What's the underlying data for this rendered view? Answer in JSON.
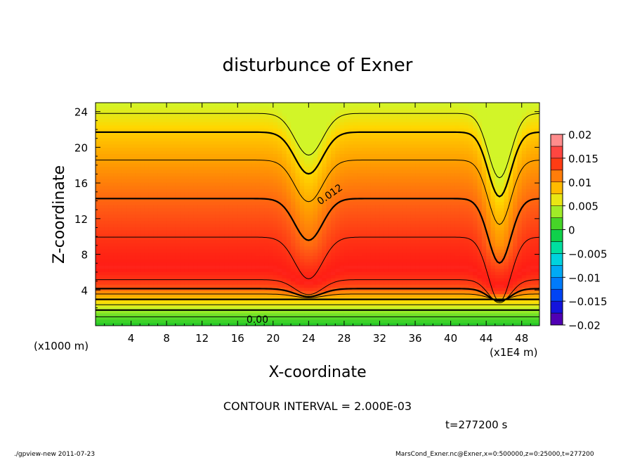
{
  "chart_data": {
    "type": "heatmap",
    "title": "disturbunce of Exner",
    "xlabel": "X-coordinate",
    "ylabel": "Z-coordinate",
    "x_unit_label": "(x1000 m)",
    "x_scale_label": "(x1E4 m)",
    "xlim": [
      0,
      50
    ],
    "ylim": [
      0,
      25
    ],
    "x_ticks": [
      4,
      8,
      12,
      16,
      20,
      24,
      28,
      32,
      36,
      40,
      44,
      48
    ],
    "x_tick_labels": [
      "4",
      "8",
      "12",
      "16",
      "20",
      "24",
      "28",
      "32",
      "36",
      "40",
      "44",
      "48"
    ],
    "y_ticks": [
      4,
      8,
      12,
      16,
      20,
      24
    ],
    "y_tick_labels": [
      "4",
      "8",
      "12",
      "16",
      "20",
      "24"
    ],
    "colorbar": {
      "min": -0.02,
      "max": 0.02,
      "ticks": [
        0.02,
        0.015,
        0.01,
        0.005,
        0,
        -0.005,
        -0.01,
        -0.015,
        -0.02
      ],
      "tick_labels": [
        "0.02",
        "0.015",
        "0.01",
        "0.005",
        "0",
        "−0.005",
        "−0.01",
        "−0.015",
        "−0.02"
      ]
    },
    "contour_interval_text": "CONTOUR INTERVAL = 2.000E-03",
    "time_text": "t=277200 s",
    "contour_labels": [
      {
        "text": "0.012",
        "x": 25.3,
        "y": 13.5
      },
      {
        "text": "0.00",
        "x": 17.0,
        "y": 0.3
      }
    ],
    "profile_levels": [
      {
        "z": 0.0,
        "value": 0.0
      },
      {
        "z": 0.8,
        "value": 0.0015
      },
      {
        "z": 1.6,
        "value": 0.0035
      },
      {
        "z": 2.5,
        "value": 0.0065
      },
      {
        "z": 3.4,
        "value": 0.0095
      },
      {
        "z": 4.6,
        "value": 0.0135
      },
      {
        "z": 6.5,
        "value": 0.0152
      },
      {
        "z": 9.5,
        "value": 0.0142
      },
      {
        "z": 12.5,
        "value": 0.0128
      },
      {
        "z": 16.0,
        "value": 0.0112
      },
      {
        "z": 19.0,
        "value": 0.0098
      },
      {
        "z": 22.0,
        "value": 0.0078
      },
      {
        "z": 24.0,
        "value": 0.0058
      },
      {
        "z": 25.0,
        "value": 0.005
      }
    ],
    "dips": [
      {
        "x": 24.0,
        "width": 2.2,
        "depth_z": 5.5
      },
      {
        "x": 45.5,
        "width": 1.8,
        "depth_z": 8.5
      }
    ]
  },
  "footer": {
    "left": "./gpview-new   2011-07-23",
    "right": "MarsCond_Exner.nc@Exner,x=0:500000,z=0:25000,t=277200"
  }
}
